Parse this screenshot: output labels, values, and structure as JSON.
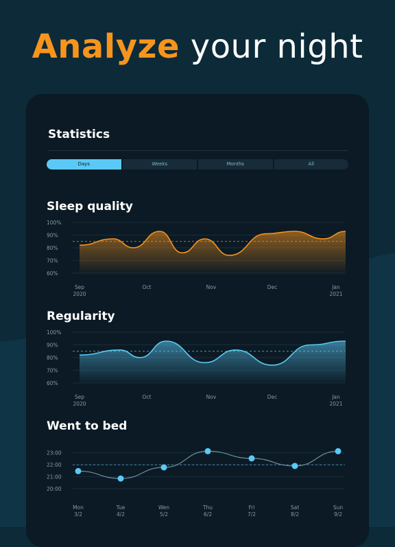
{
  "headline": {
    "accent": "Analyze",
    "rest": "your night"
  },
  "statistics": {
    "title": "Statistics",
    "tabs": [
      {
        "label": "Days",
        "active": true
      },
      {
        "label": "Weeks",
        "active": false
      },
      {
        "label": "Months",
        "active": false
      },
      {
        "label": "All",
        "active": false
      }
    ]
  },
  "colors": {
    "accent_orange": "#f7941d",
    "accent_blue": "#5bc9f5",
    "card_bg": "#0b1a24",
    "page_bg": "#0c2a38"
  },
  "chart_data": [
    {
      "type": "area",
      "title": "Sleep quality",
      "color": "#f7941d",
      "ytick_labels": [
        "100%",
        "90%",
        "80%",
        "70%",
        "60%"
      ],
      "yticks": [
        100,
        90,
        80,
        70,
        60
      ],
      "ylim": [
        60,
        100
      ],
      "xtick_labels": [
        [
          "Sep",
          "2020"
        ],
        [
          "Oct",
          ""
        ],
        [
          "Nov",
          ""
        ],
        [
          "Dec",
          ""
        ],
        [
          "Jan",
          "2021"
        ]
      ],
      "xticks": [
        0,
        1,
        2,
        3,
        4
      ],
      "reference_line": 85,
      "x": [
        0,
        0.5,
        0.8,
        1.2,
        1.55,
        1.9,
        2.3,
        2.9,
        3.35,
        3.8,
        4.15
      ],
      "values": [
        82,
        87,
        80,
        93,
        76,
        87,
        74,
        91,
        93,
        87,
        93
      ]
    },
    {
      "type": "area",
      "title": "Regularity",
      "color": "#5bc9f5",
      "ytick_labels": [
        "100%",
        "90%",
        "80%",
        "70%",
        "60%"
      ],
      "yticks": [
        100,
        90,
        80,
        70,
        60
      ],
      "ylim": [
        60,
        100
      ],
      "xtick_labels": [
        [
          "Sep",
          "2020"
        ],
        [
          "Oct",
          ""
        ],
        [
          "Nov",
          ""
        ],
        [
          "Dec",
          ""
        ],
        [
          "Jan",
          "2021"
        ]
      ],
      "xticks": [
        0,
        1,
        2,
        3,
        4
      ],
      "reference_line": 85,
      "x": [
        0,
        0.6,
        0.9,
        1.3,
        1.9,
        2.4,
        3.0,
        3.6,
        4.15
      ],
      "values": [
        82,
        86,
        80,
        93,
        76,
        86,
        74,
        90,
        93
      ]
    },
    {
      "type": "line",
      "title": "Went to bed",
      "color": "#5bc9f5",
      "ytick_labels": [
        "23:00",
        "22:00",
        "21:00",
        "20:00"
      ],
      "yticks": [
        23,
        22,
        21,
        20
      ],
      "ylim": [
        19.6,
        23.9
      ],
      "xtick_labels": [
        [
          "Mon",
          "3/2"
        ],
        [
          "Tue",
          "4/2"
        ],
        [
          "Wen",
          "5/2"
        ],
        [
          "Thu",
          "6/2"
        ],
        [
          "Fri",
          "7/2"
        ],
        [
          "Sat",
          "8/2"
        ],
        [
          "Sun",
          "9/2"
        ]
      ],
      "xticks": [
        0,
        1,
        2,
        3,
        4,
        5,
        6
      ],
      "reference_line": 22,
      "x": [
        0,
        1,
        2,
        3,
        4,
        5,
        6
      ],
      "values": [
        21.47,
        20.85,
        21.78,
        23.13,
        22.53,
        21.9,
        23.13
      ]
    }
  ]
}
